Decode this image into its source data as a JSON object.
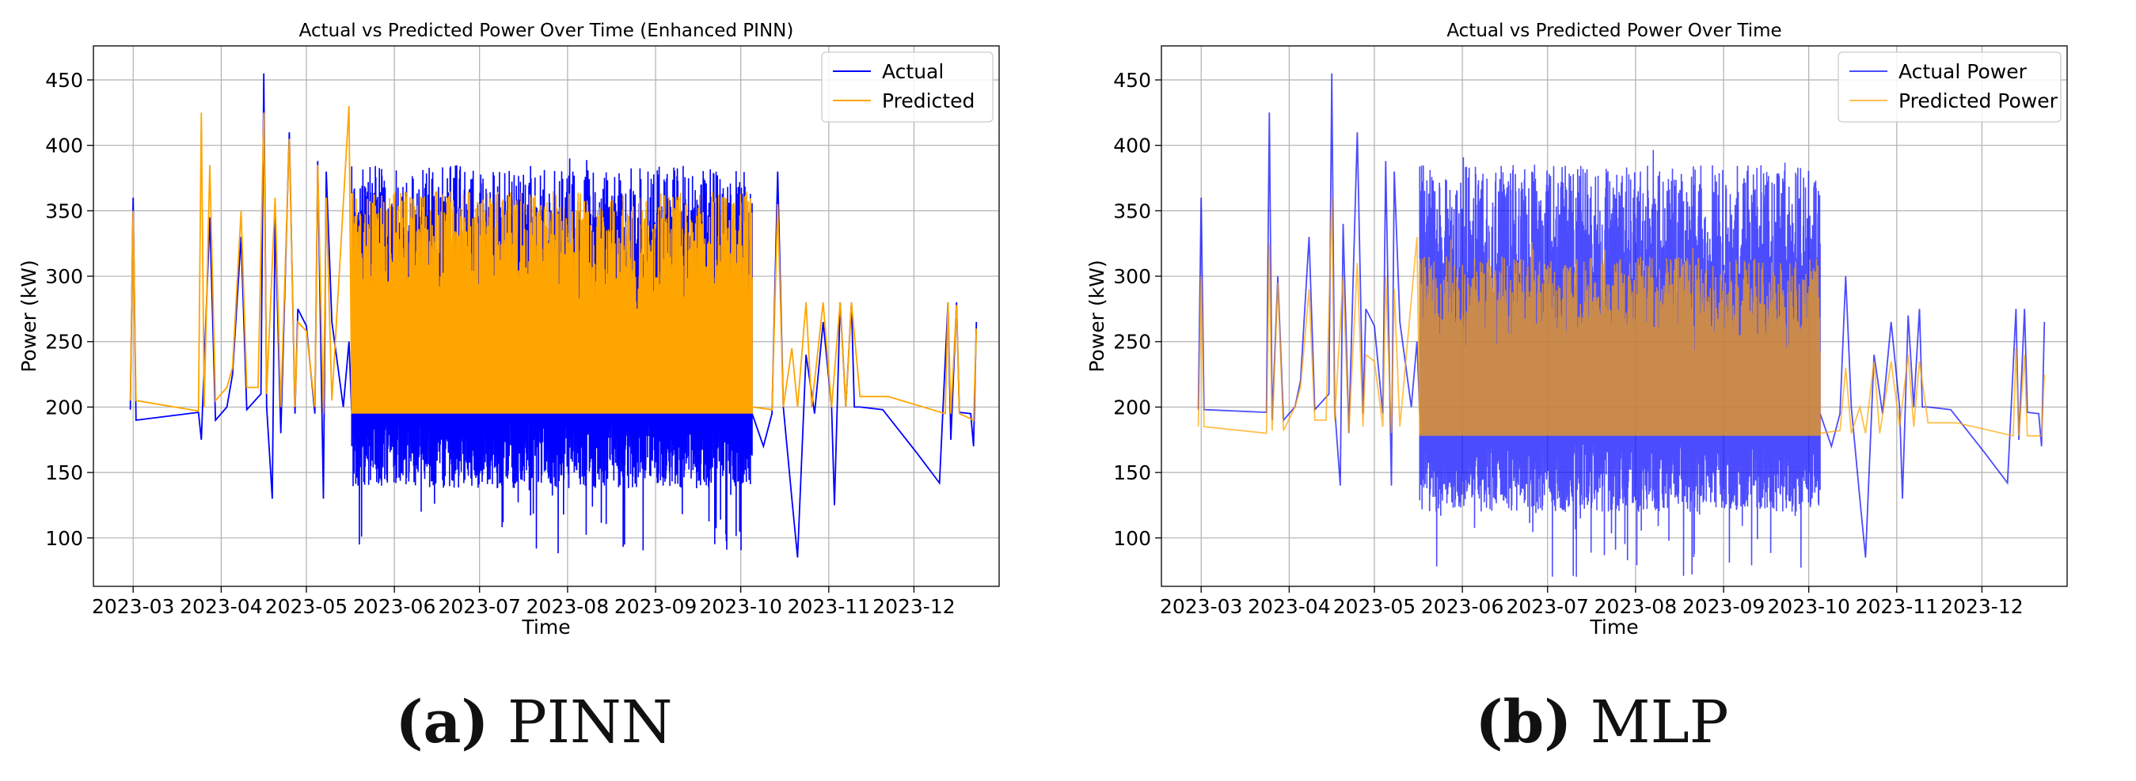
{
  "colors": {
    "actual": "#0000ff",
    "predicted": "#ffa500",
    "grid": "#b0b0b0",
    "axis": "#000000"
  },
  "chart_data": [
    {
      "type": "line",
      "caption_letter": "(a)",
      "caption_text": "PINN",
      "title": "Actual vs Predicted Power Over Time (Enhanced PINN)",
      "xlabel": "Time",
      "ylabel": "Power (kW)",
      "x_ticks": [
        "2023-03",
        "2023-04",
        "2023-05",
        "2023-06",
        "2023-07",
        "2023-08",
        "2023-09",
        "2023-10",
        "2023-11",
        "2023-12"
      ],
      "y_ticks": [
        100,
        150,
        200,
        250,
        300,
        350,
        400,
        450
      ],
      "xlim": [
        "2023-02-15",
        "2023-12-31"
      ],
      "ylim": [
        63,
        476
      ],
      "grid": true,
      "legend_position": "top-right",
      "series": [
        {
          "name": "Actual",
          "color": "#0000ff",
          "opacity": 1.0,
          "dense_low": 193,
          "dense_high": 385,
          "points": [
            [
              "2023-02-28",
              198
            ],
            [
              "2023-03-01",
              360
            ],
            [
              "2023-03-02",
              190
            ],
            [
              "2023-03-24",
              196
            ],
            [
              "2023-03-25",
              175
            ],
            [
              "2023-03-28",
              345
            ],
            [
              "2023-03-30",
              190
            ],
            [
              "2023-04-03",
              200
            ],
            [
              "2023-04-05",
              225
            ],
            [
              "2023-04-08",
              330
            ],
            [
              "2023-04-10",
              198
            ],
            [
              "2023-04-15",
              210
            ],
            [
              "2023-04-16",
              455
            ],
            [
              "2023-04-17",
              200
            ],
            [
              "2023-04-19",
              130
            ],
            [
              "2023-04-20",
              345
            ],
            [
              "2023-04-22",
              180
            ],
            [
              "2023-04-25",
              410
            ],
            [
              "2023-04-27",
              195
            ],
            [
              "2023-04-28",
              275
            ],
            [
              "2023-05-01",
              262
            ],
            [
              "2023-05-04",
              195
            ],
            [
              "2023-05-05",
              388
            ],
            [
              "2023-05-07",
              130
            ],
            [
              "2023-05-08",
              380
            ],
            [
              "2023-05-10",
              265
            ],
            [
              "2023-05-14",
              200
            ],
            [
              "2023-05-16",
              250
            ],
            [
              "2023-05-17",
              195
            ],
            [
              "2023-10-05",
              195
            ],
            [
              "2023-10-09",
              170
            ],
            [
              "2023-10-12",
              195
            ],
            [
              "2023-10-14",
              380
            ],
            [
              "2023-10-16",
              200
            ],
            [
              "2023-10-19",
              130
            ],
            [
              "2023-10-21",
              85
            ],
            [
              "2023-10-24",
              240
            ],
            [
              "2023-10-27",
              195
            ],
            [
              "2023-10-30",
              265
            ],
            [
              "2023-11-02",
              200
            ],
            [
              "2023-11-03",
              125
            ],
            [
              "2023-11-05",
              280
            ],
            [
              "2023-11-07",
              200
            ],
            [
              "2023-11-09",
              280
            ],
            [
              "2023-11-10",
              200
            ],
            [
              "2023-11-12",
              200
            ],
            [
              "2023-11-20",
              198
            ],
            [
              "2023-12-02",
              165
            ],
            [
              "2023-12-10",
              142
            ],
            [
              "2023-12-13",
              280
            ],
            [
              "2023-12-14",
              175
            ],
            [
              "2023-12-16",
              280
            ],
            [
              "2023-12-17",
              196
            ],
            [
              "2023-12-21",
              195
            ],
            [
              "2023-12-22",
              170
            ],
            [
              "2023-12-23",
              265
            ]
          ]
        },
        {
          "name": "Predicted",
          "color": "#ffa500",
          "opacity": 1.0,
          "dense_low": 195,
          "dense_high": 365,
          "points": [
            [
              "2023-02-28",
              205
            ],
            [
              "2023-03-01",
              350
            ],
            [
              "2023-03-02",
              205
            ],
            [
              "2023-03-24",
              197
            ],
            [
              "2023-03-25",
              425
            ],
            [
              "2023-03-26",
              200
            ],
            [
              "2023-03-28",
              385
            ],
            [
              "2023-03-30",
              205
            ],
            [
              "2023-04-03",
              215
            ],
            [
              "2023-04-05",
              230
            ],
            [
              "2023-04-08",
              350
            ],
            [
              "2023-04-10",
              215
            ],
            [
              "2023-04-14",
              215
            ],
            [
              "2023-04-16",
              425
            ],
            [
              "2023-04-17",
              210
            ],
            [
              "2023-04-20",
              360
            ],
            [
              "2023-04-22",
              200
            ],
            [
              "2023-04-25",
              405
            ],
            [
              "2023-04-27",
              200
            ],
            [
              "2023-04-28",
              265
            ],
            [
              "2023-05-01",
              258
            ],
            [
              "2023-05-04",
              200
            ],
            [
              "2023-05-05",
              385
            ],
            [
              "2023-05-07",
              195
            ],
            [
              "2023-05-08",
              360
            ],
            [
              "2023-05-10",
              205
            ],
            [
              "2023-05-16",
              430
            ],
            [
              "2023-05-17",
              200
            ],
            [
              "2023-10-05",
              200
            ],
            [
              "2023-10-12",
              198
            ],
            [
              "2023-10-14",
              355
            ],
            [
              "2023-10-16",
              200
            ],
            [
              "2023-10-19",
              245
            ],
            [
              "2023-10-21",
              200
            ],
            [
              "2023-10-24",
              280
            ],
            [
              "2023-10-26",
              200
            ],
            [
              "2023-10-30",
              280
            ],
            [
              "2023-11-02",
              200
            ],
            [
              "2023-11-05",
              280
            ],
            [
              "2023-11-07",
              200
            ],
            [
              "2023-11-09",
              280
            ],
            [
              "2023-11-12",
              208
            ],
            [
              "2023-11-22",
              208
            ],
            [
              "2023-12-12",
              195
            ],
            [
              "2023-12-13",
              280
            ],
            [
              "2023-12-14",
              195
            ],
            [
              "2023-12-16",
              278
            ],
            [
              "2023-12-17",
              195
            ],
            [
              "2023-12-22",
              190
            ],
            [
              "2023-12-23",
              260
            ]
          ]
        }
      ]
    },
    {
      "type": "line",
      "caption_letter": "(b)",
      "caption_text": "MLP",
      "title": "Actual vs Predicted Power Over Time",
      "xlabel": "Time",
      "ylabel": "Power (kW)",
      "x_ticks": [
        "2023-03",
        "2023-04",
        "2023-05",
        "2023-06",
        "2023-07",
        "2023-08",
        "2023-09",
        "2023-10",
        "2023-11",
        "2023-12"
      ],
      "y_ticks": [
        100,
        150,
        200,
        250,
        300,
        350,
        400,
        450
      ],
      "xlim": [
        "2023-02-15",
        "2023-12-31"
      ],
      "ylim": [
        63,
        476
      ],
      "grid": true,
      "legend_position": "top-right",
      "series": [
        {
          "name": "Actual Power",
          "color": "#0000ff",
          "opacity": 0.7,
          "dense_low": 175,
          "dense_high": 385,
          "points": [
            [
              "2023-02-28",
              198
            ],
            [
              "2023-03-01",
              360
            ],
            [
              "2023-03-02",
              198
            ],
            [
              "2023-03-24",
              196
            ],
            [
              "2023-03-25",
              425
            ],
            [
              "2023-03-26",
              190
            ],
            [
              "2023-03-28",
              300
            ],
            [
              "2023-03-30",
              190
            ],
            [
              "2023-04-03",
              200
            ],
            [
              "2023-04-05",
              220
            ],
            [
              "2023-04-08",
              330
            ],
            [
              "2023-04-10",
              198
            ],
            [
              "2023-04-15",
              210
            ],
            [
              "2023-04-16",
              455
            ],
            [
              "2023-04-17",
              200
            ],
            [
              "2023-04-19",
              140
            ],
            [
              "2023-04-20",
              340
            ],
            [
              "2023-04-22",
              180
            ],
            [
              "2023-04-25",
              410
            ],
            [
              "2023-04-27",
              195
            ],
            [
              "2023-04-28",
              275
            ],
            [
              "2023-05-01",
              262
            ],
            [
              "2023-05-04",
              195
            ],
            [
              "2023-05-05",
              388
            ],
            [
              "2023-05-07",
              140
            ],
            [
              "2023-05-08",
              380
            ],
            [
              "2023-05-10",
              265
            ],
            [
              "2023-05-14",
              200
            ],
            [
              "2023-05-16",
              250
            ],
            [
              "2023-05-17",
              195
            ],
            [
              "2023-10-05",
              195
            ],
            [
              "2023-10-09",
              170
            ],
            [
              "2023-10-12",
              195
            ],
            [
              "2023-10-14",
              300
            ],
            [
              "2023-10-16",
              200
            ],
            [
              "2023-10-19",
              130
            ],
            [
              "2023-10-21",
              85
            ],
            [
              "2023-10-24",
              240
            ],
            [
              "2023-10-27",
              195
            ],
            [
              "2023-10-30",
              265
            ],
            [
              "2023-11-02",
              200
            ],
            [
              "2023-11-03",
              130
            ],
            [
              "2023-11-05",
              270
            ],
            [
              "2023-11-07",
              200
            ],
            [
              "2023-11-09",
              275
            ],
            [
              "2023-11-10",
              200
            ],
            [
              "2023-11-12",
              200
            ],
            [
              "2023-11-20",
              198
            ],
            [
              "2023-12-02",
              165
            ],
            [
              "2023-12-10",
              142
            ],
            [
              "2023-12-13",
              275
            ],
            [
              "2023-12-14",
              175
            ],
            [
              "2023-12-16",
              275
            ],
            [
              "2023-12-17",
              196
            ],
            [
              "2023-12-21",
              195
            ],
            [
              "2023-12-22",
              170
            ],
            [
              "2023-12-23",
              265
            ]
          ]
        },
        {
          "name": "Predicted Power",
          "color": "#ffa500",
          "opacity": 0.7,
          "dense_low": 178,
          "dense_high": 315,
          "points": [
            [
              "2023-02-28",
              185
            ],
            [
              "2023-03-01",
              300
            ],
            [
              "2023-03-02",
              185
            ],
            [
              "2023-03-24",
              180
            ],
            [
              "2023-03-25",
              325
            ],
            [
              "2023-03-26",
              182
            ],
            [
              "2023-03-28",
              295
            ],
            [
              "2023-03-30",
              182
            ],
            [
              "2023-04-03",
              200
            ],
            [
              "2023-04-05",
              215
            ],
            [
              "2023-04-08",
              290
            ],
            [
              "2023-04-10",
              190
            ],
            [
              "2023-04-14",
              190
            ],
            [
              "2023-04-16",
              360
            ],
            [
              "2023-04-17",
              190
            ],
            [
              "2023-04-20",
              300
            ],
            [
              "2023-04-22",
              180
            ],
            [
              "2023-04-25",
              310
            ],
            [
              "2023-04-27",
              185
            ],
            [
              "2023-04-28",
              240
            ],
            [
              "2023-05-01",
              235
            ],
            [
              "2023-05-04",
              185
            ],
            [
              "2023-05-05",
              300
            ],
            [
              "2023-05-07",
              180
            ],
            [
              "2023-05-08",
              290
            ],
            [
              "2023-05-10",
              185
            ],
            [
              "2023-05-16",
              330
            ],
            [
              "2023-05-17",
              180
            ],
            [
              "2023-10-05",
              180
            ],
            [
              "2023-10-12",
              182
            ],
            [
              "2023-10-14",
              230
            ],
            [
              "2023-10-16",
              180
            ],
            [
              "2023-10-19",
              200
            ],
            [
              "2023-10-21",
              180
            ],
            [
              "2023-10-24",
              235
            ],
            [
              "2023-10-26",
              180
            ],
            [
              "2023-10-30",
              235
            ],
            [
              "2023-11-02",
              185
            ],
            [
              "2023-11-05",
              240
            ],
            [
              "2023-11-07",
              185
            ],
            [
              "2023-11-09",
              235
            ],
            [
              "2023-11-12",
              188
            ],
            [
              "2023-11-22",
              188
            ],
            [
              "2023-12-12",
              178
            ],
            [
              "2023-12-13",
              245
            ],
            [
              "2023-12-14",
              178
            ],
            [
              "2023-12-16",
              240
            ],
            [
              "2023-12-17",
              178
            ],
            [
              "2023-12-22",
              178
            ],
            [
              "2023-12-23",
              225
            ]
          ]
        }
      ]
    }
  ]
}
